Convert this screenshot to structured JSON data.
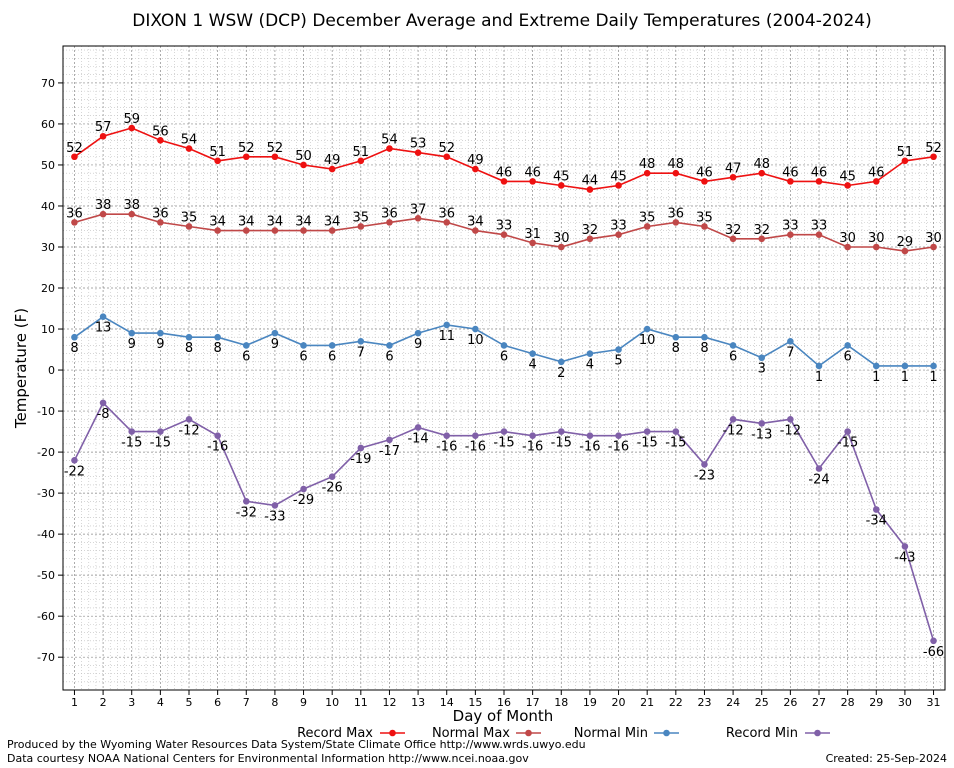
{
  "chart_data": {
    "type": "line",
    "title": "DIXON 1 WSW (DCP) December Average and Extreme Daily Temperatures (2004-2024)",
    "xlabel": "Day of Month",
    "ylabel": "Temperature (F)",
    "ylim": [
      -78,
      79
    ],
    "xlim": [
      0.6,
      31.4
    ],
    "y_ticks": [
      -70,
      -60,
      -50,
      -40,
      -30,
      -20,
      -10,
      0,
      10,
      20,
      30,
      40,
      50,
      60,
      70
    ],
    "x": [
      1,
      2,
      3,
      4,
      5,
      6,
      7,
      8,
      9,
      10,
      11,
      12,
      13,
      14,
      15,
      16,
      17,
      18,
      19,
      20,
      21,
      22,
      23,
      24,
      25,
      26,
      27,
      28,
      29,
      30,
      31
    ],
    "grid": true,
    "legend_position": "bottom",
    "series": [
      {
        "name": "Record Max",
        "color": "#ee1111",
        "labelpos": "above",
        "values": [
          52,
          57,
          59,
          56,
          54,
          51,
          52,
          52,
          50,
          49,
          51,
          54,
          53,
          52,
          49,
          46,
          46,
          45,
          44,
          45,
          48,
          48,
          46,
          47,
          48,
          46,
          46,
          45,
          46,
          51,
          52
        ]
      },
      {
        "name": "Normal Max",
        "color": "#c04848",
        "labelpos": "above",
        "values": [
          36,
          38,
          38,
          36,
          35,
          34,
          34,
          34,
          34,
          34,
          35,
          36,
          37,
          36,
          34,
          33,
          31,
          30,
          32,
          33,
          35,
          36,
          35,
          32,
          32,
          33,
          33,
          30,
          30,
          29,
          30
        ]
      },
      {
        "name": "Normal Min",
        "color": "#4a86c0",
        "labelpos": "below",
        "values": [
          8,
          13,
          9,
          9,
          8,
          8,
          6,
          9,
          6,
          6,
          7,
          6,
          9,
          11,
          10,
          6,
          4,
          2,
          4,
          5,
          10,
          8,
          8,
          6,
          3,
          7,
          1,
          6,
          1,
          1,
          1
        ]
      },
      {
        "name": "Record Min",
        "color": "#8060a8",
        "labelpos": "below",
        "values": [
          -22,
          -8,
          -15,
          -15,
          -12,
          -16,
          -32,
          -33,
          -29,
          -26,
          -19,
          -17,
          -14,
          -16,
          -16,
          -15,
          -16,
          -15,
          -16,
          -16,
          -15,
          -15,
          -23,
          -12,
          -13,
          -12,
          -24,
          -15,
          -34,
          -43,
          -66
        ]
      }
    ]
  },
  "footer": {
    "produced_by": "Produced by the Wyoming Water Resources Data System/State Climate Office http://www.wrds.uwyo.edu",
    "data_courtesy": "Data courtesy NOAA National Centers for Environmental Information http://www.ncei.noaa.gov",
    "created": "Created:  25-Sep-2024"
  }
}
